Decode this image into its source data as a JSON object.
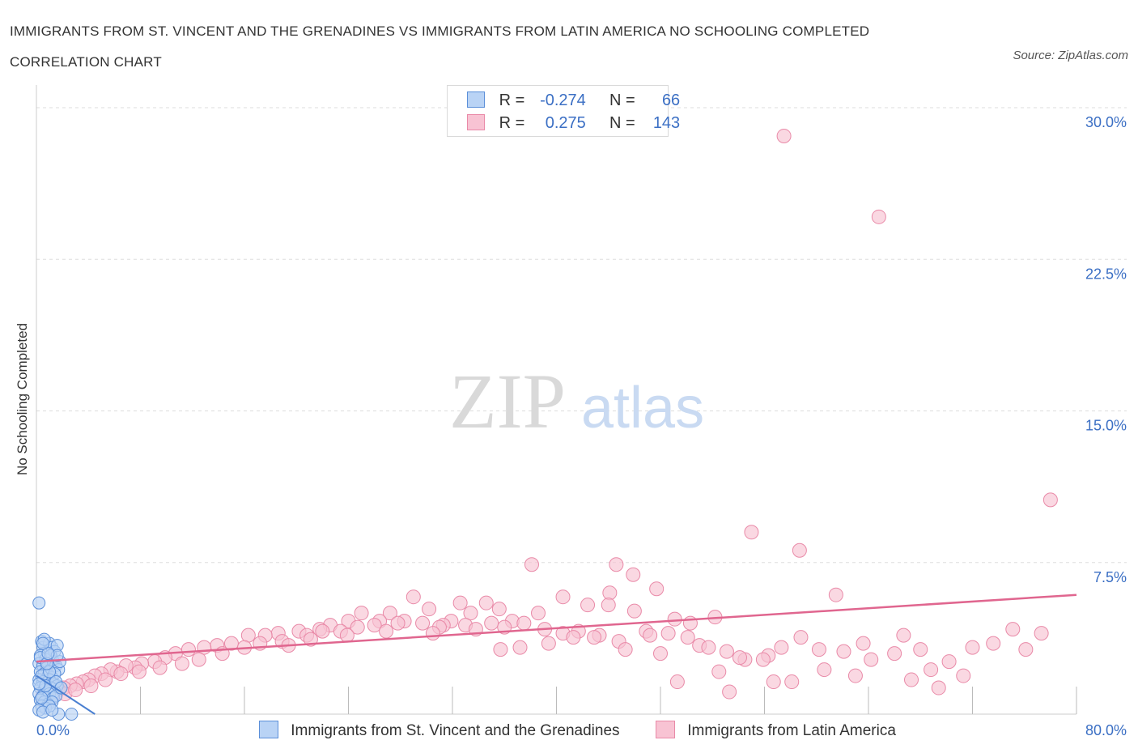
{
  "header": {
    "title_line1": "IMMIGRANTS FROM ST. VINCENT AND THE GRENADINES VS IMMIGRANTS FROM LATIN AMERICA NO SCHOOLING COMPLETED",
    "title_line2": "CORRELATION CHART",
    "source": "Source: ZipAtlas.com"
  },
  "watermark": {
    "zip": "ZIP",
    "atlas": "atlas"
  },
  "colors": {
    "blue_fill": "#b9d3f5",
    "blue_stroke": "#5b8fd9",
    "blue_line": "#4a7fd1",
    "pink_fill": "#f8c3d3",
    "pink_stroke": "#e98aa8",
    "pink_line": "#e0668f",
    "tick_label": "#3b6fc4",
    "grid": "#dddddd"
  },
  "legend_top": {
    "rows": [
      {
        "r_label": "R =",
        "r_value": "-0.274",
        "n_label": "N =",
        "n_value": "66"
      },
      {
        "r_label": "R =",
        "r_value": "0.275",
        "n_label": "N =",
        "n_value": "143"
      }
    ]
  },
  "legend_bottom": {
    "items": [
      {
        "label": "Immigrants from St. Vincent and the Grenadines"
      },
      {
        "label": "Immigrants from Latin America"
      }
    ]
  },
  "chart_data": {
    "type": "scatter",
    "xlabel": "",
    "ylabel": "No Schooling Completed",
    "xlim": [
      0,
      80
    ],
    "ylim": [
      0,
      30.0
    ],
    "x_tick_labels": [
      "0.0%",
      "80.0%"
    ],
    "y_ticks": [
      7.5,
      15.0,
      22.5,
      30.0
    ],
    "y_tick_labels": [
      "7.5%",
      "15.0%",
      "22.5%",
      "30.0%"
    ],
    "grid": true,
    "legend_position": "top-center",
    "series": [
      {
        "name": "Immigrants from St. Vincent and the Grenadines",
        "color": "blue",
        "trend": {
          "x": [
            0.0,
            4.5
          ],
          "y": [
            1.9,
            0.0
          ]
        },
        "points": [
          [
            0.2,
            5.5
          ],
          [
            0.4,
            3.6
          ],
          [
            0.5,
            3.3
          ],
          [
            0.6,
            3.0
          ],
          [
            0.3,
            2.9
          ],
          [
            0.7,
            2.7
          ],
          [
            1.0,
            3.5
          ],
          [
            1.2,
            3.3
          ],
          [
            1.4,
            3.1
          ],
          [
            1.6,
            3.4
          ],
          [
            0.2,
            2.5
          ],
          [
            0.5,
            2.4
          ],
          [
            0.8,
            2.3
          ],
          [
            1.1,
            2.2
          ],
          [
            1.3,
            2.6
          ],
          [
            1.5,
            2.4
          ],
          [
            1.7,
            2.2
          ],
          [
            0.3,
            2.1
          ],
          [
            0.6,
            2.0
          ],
          [
            0.9,
            1.9
          ],
          [
            1.2,
            1.8
          ],
          [
            1.4,
            2.0
          ],
          [
            0.2,
            1.7
          ],
          [
            0.5,
            1.6
          ],
          [
            0.8,
            1.5
          ],
          [
            1.0,
            1.7
          ],
          [
            1.3,
            1.5
          ],
          [
            1.6,
            1.4
          ],
          [
            0.3,
            1.3
          ],
          [
            0.6,
            1.2
          ],
          [
            0.9,
            1.1
          ],
          [
            1.1,
            1.3
          ],
          [
            1.4,
            1.1
          ],
          [
            0.2,
            1.0
          ],
          [
            0.5,
            0.9
          ],
          [
            0.8,
            0.8
          ],
          [
            1.0,
            1.0
          ],
          [
            1.3,
            0.8
          ],
          [
            1.5,
            0.9
          ],
          [
            0.3,
            0.7
          ],
          [
            0.6,
            0.6
          ],
          [
            0.9,
            0.5
          ],
          [
            1.2,
            0.6
          ],
          [
            0.4,
            0.4
          ],
          [
            0.7,
            0.3
          ],
          [
            1.0,
            0.4
          ],
          [
            0.2,
            0.2
          ],
          [
            0.5,
            0.1
          ],
          [
            1.7,
            0.0
          ],
          [
            2.7,
            0.0
          ],
          [
            0.3,
            2.8
          ],
          [
            0.6,
            3.7
          ],
          [
            1.1,
            2.9
          ],
          [
            1.8,
            2.6
          ],
          [
            0.4,
            1.9
          ],
          [
            0.7,
            1.4
          ],
          [
            1.0,
            2.1
          ],
          [
            1.5,
            1.6
          ],
          [
            0.2,
            1.5
          ],
          [
            0.8,
            2.5
          ],
          [
            1.2,
            0.2
          ],
          [
            0.4,
            0.8
          ],
          [
            1.6,
            2.9
          ],
          [
            0.9,
            3.0
          ],
          [
            0.5,
            3.5
          ],
          [
            1.9,
            1.3
          ]
        ]
      },
      {
        "name": "Immigrants from Latin America",
        "color": "pink",
        "trend": {
          "x": [
            0.0,
            80.0
          ],
          "y": [
            2.6,
            5.9
          ]
        },
        "points": [
          [
            57.5,
            28.6
          ],
          [
            64.8,
            24.6
          ],
          [
            78.0,
            10.6
          ],
          [
            55.0,
            9.0
          ],
          [
            58.7,
            8.1
          ],
          [
            38.1,
            7.4
          ],
          [
            44.6,
            7.4
          ],
          [
            45.9,
            6.9
          ],
          [
            61.5,
            5.9
          ],
          [
            47.7,
            6.2
          ],
          [
            44.1,
            6.0
          ],
          [
            40.5,
            5.8
          ],
          [
            29.0,
            5.8
          ],
          [
            32.6,
            5.5
          ],
          [
            34.6,
            5.5
          ],
          [
            30.2,
            5.2
          ],
          [
            38.6,
            5.0
          ],
          [
            27.2,
            5.0
          ],
          [
            25.0,
            5.0
          ],
          [
            42.4,
            5.4
          ],
          [
            44.0,
            5.4
          ],
          [
            46.0,
            5.1
          ],
          [
            52.2,
            4.8
          ],
          [
            49.1,
            4.7
          ],
          [
            50.3,
            4.5
          ],
          [
            36.6,
            4.6
          ],
          [
            35.6,
            5.2
          ],
          [
            33.4,
            5.0
          ],
          [
            31.9,
            4.6
          ],
          [
            31.3,
            4.4
          ],
          [
            28.3,
            4.6
          ],
          [
            26.4,
            4.6
          ],
          [
            24.0,
            4.6
          ],
          [
            22.6,
            4.4
          ],
          [
            21.8,
            4.2
          ],
          [
            20.2,
            4.1
          ],
          [
            18.6,
            4.0
          ],
          [
            17.6,
            3.9
          ],
          [
            16.3,
            3.9
          ],
          [
            15.0,
            3.5
          ],
          [
            13.9,
            3.4
          ],
          [
            12.9,
            3.3
          ],
          [
            11.7,
            3.2
          ],
          [
            10.7,
            3.0
          ],
          [
            9.9,
            2.8
          ],
          [
            9.1,
            2.6
          ],
          [
            8.1,
            2.5
          ],
          [
            7.6,
            2.3
          ],
          [
            6.9,
            2.4
          ],
          [
            6.2,
            2.1
          ],
          [
            5.7,
            2.2
          ],
          [
            5.0,
            2.0
          ],
          [
            4.5,
            1.9
          ],
          [
            4.0,
            1.7
          ],
          [
            3.6,
            1.6
          ],
          [
            3.1,
            1.5
          ],
          [
            2.6,
            1.4
          ],
          [
            2.1,
            1.3
          ],
          [
            1.7,
            1.2
          ],
          [
            1.3,
            1.1
          ],
          [
            0.9,
            1.0
          ],
          [
            0.5,
            0.9
          ],
          [
            1.2,
            0.8
          ],
          [
            2.2,
            1.0
          ],
          [
            3.0,
            1.2
          ],
          [
            4.2,
            1.4
          ],
          [
            5.3,
            1.7
          ],
          [
            6.5,
            2.0
          ],
          [
            7.9,
            2.1
          ],
          [
            9.5,
            2.3
          ],
          [
            11.2,
            2.5
          ],
          [
            12.5,
            2.7
          ],
          [
            14.3,
            3.0
          ],
          [
            16.0,
            3.3
          ],
          [
            17.2,
            3.5
          ],
          [
            18.9,
            3.6
          ],
          [
            20.8,
            3.9
          ],
          [
            22.0,
            4.1
          ],
          [
            23.4,
            4.1
          ],
          [
            24.7,
            4.3
          ],
          [
            26.0,
            4.4
          ],
          [
            27.8,
            4.5
          ],
          [
            29.7,
            4.5
          ],
          [
            31.0,
            4.3
          ],
          [
            33.0,
            4.4
          ],
          [
            35.0,
            4.5
          ],
          [
            36.0,
            4.3
          ],
          [
            37.5,
            4.5
          ],
          [
            39.1,
            4.2
          ],
          [
            40.5,
            4.0
          ],
          [
            41.7,
            4.1
          ],
          [
            43.3,
            3.9
          ],
          [
            44.8,
            3.6
          ],
          [
            46.9,
            4.1
          ],
          [
            48.6,
            4.0
          ],
          [
            50.1,
            3.8
          ],
          [
            51.0,
            3.4
          ],
          [
            53.1,
            3.1
          ],
          [
            54.5,
            2.7
          ],
          [
            56.3,
            2.9
          ],
          [
            57.3,
            3.3
          ],
          [
            58.8,
            3.8
          ],
          [
            60.2,
            3.2
          ],
          [
            62.1,
            3.1
          ],
          [
            63.6,
            3.5
          ],
          [
            66.0,
            3.0
          ],
          [
            66.7,
            3.9
          ],
          [
            68.0,
            3.2
          ],
          [
            70.2,
            2.6
          ],
          [
            72.0,
            3.3
          ],
          [
            73.6,
            3.5
          ],
          [
            75.1,
            4.2
          ],
          [
            76.1,
            3.2
          ],
          [
            77.3,
            4.0
          ],
          [
            58.1,
            1.6
          ],
          [
            63.0,
            1.9
          ],
          [
            67.3,
            1.7
          ],
          [
            69.4,
            1.3
          ],
          [
            71.3,
            1.9
          ],
          [
            56.7,
            1.6
          ],
          [
            52.5,
            2.1
          ],
          [
            49.3,
            1.6
          ],
          [
            53.3,
            1.1
          ],
          [
            60.6,
            2.2
          ],
          [
            64.2,
            2.7
          ],
          [
            68.8,
            2.2
          ],
          [
            39.4,
            3.5
          ],
          [
            45.3,
            3.2
          ],
          [
            48.0,
            3.0
          ],
          [
            51.7,
            3.3
          ],
          [
            54.1,
            2.8
          ],
          [
            55.9,
            2.7
          ],
          [
            35.7,
            3.2
          ],
          [
            41.3,
            3.8
          ],
          [
            47.2,
            3.9
          ],
          [
            42.9,
            3.8
          ],
          [
            37.2,
            3.3
          ],
          [
            33.8,
            4.2
          ],
          [
            30.5,
            4.0
          ],
          [
            26.9,
            4.1
          ],
          [
            23.9,
            3.9
          ],
          [
            21.1,
            3.7
          ],
          [
            19.4,
            3.4
          ]
        ]
      }
    ]
  }
}
